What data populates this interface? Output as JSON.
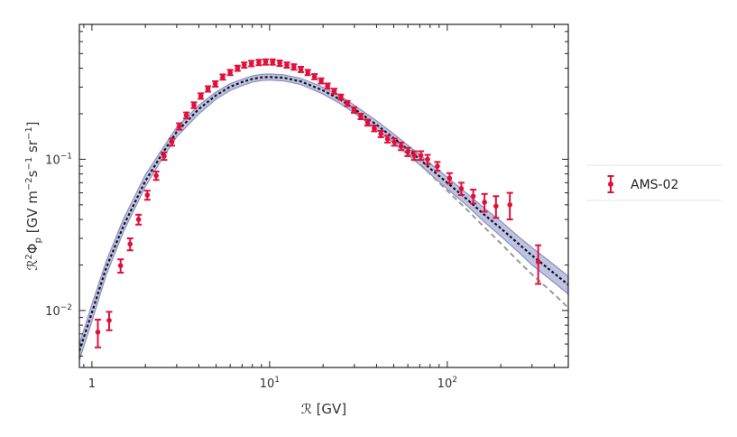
{
  "chart_data": {
    "type": "scatter",
    "title": "",
    "xlabel": "ℛ [GV]",
    "ylabel_parts": {
      "pre": "ℛ",
      "sup1": "2",
      "mid1": "Φ",
      "sub1": "p",
      "mid2": " [GV m",
      "sup2": "−2",
      "mid3": "s",
      "sup3": "−1",
      "mid4": " sr",
      "sup4": "−1",
      "post": "]"
    },
    "x_scale": "log",
    "y_scale": "log",
    "xlim": [
      0.85,
      480
    ],
    "ylim": [
      0.0042,
      0.78
    ],
    "x_ticks": [
      {
        "value": 1,
        "base": "1",
        "exp": ""
      },
      {
        "value": 10,
        "base": "10",
        "exp": "1"
      },
      {
        "value": 100,
        "base": "10",
        "exp": "2"
      }
    ],
    "y_ticks": [
      {
        "value": 0.01,
        "base": "10",
        "exp": "−2"
      },
      {
        "value": 0.1,
        "base": "10",
        "exp": "−1"
      }
    ],
    "grid": false,
    "legend_position": "outside-right",
    "colors": {
      "data": "#e0103a",
      "band": "#8a90c8",
      "model_black": "#111111",
      "model_gray": "#9a9a9a"
    },
    "series": [
      {
        "name": "AMS-02",
        "kind": "points_with_errors",
        "x": [
          1.08,
          1.25,
          1.45,
          1.64,
          1.83,
          2.05,
          2.3,
          2.55,
          2.82,
          3.1,
          3.4,
          3.75,
          4.1,
          4.5,
          4.95,
          5.45,
          6.0,
          6.6,
          7.2,
          7.9,
          8.7,
          9.5,
          10.4,
          11.4,
          12.5,
          13.7,
          15.0,
          16.4,
          17.9,
          19.5,
          21.2,
          23.1,
          25.2,
          27.4,
          29.9,
          32.6,
          35.6,
          38.8,
          42.3,
          46.1,
          50.3,
          54.9,
          59.8,
          65.2,
          71.1,
          77.5,
          88.0,
          103,
          120,
          140,
          162,
          188,
          225,
          325
        ],
        "y": [
          0.0072,
          0.0086,
          0.0198,
          0.0275,
          0.04,
          0.058,
          0.078,
          0.105,
          0.13,
          0.165,
          0.195,
          0.228,
          0.262,
          0.292,
          0.315,
          0.35,
          0.375,
          0.4,
          0.42,
          0.43,
          0.437,
          0.44,
          0.44,
          0.432,
          0.42,
          0.408,
          0.393,
          0.375,
          0.352,
          0.33,
          0.305,
          0.282,
          0.258,
          0.234,
          0.212,
          0.192,
          0.175,
          0.16,
          0.147,
          0.136,
          0.13,
          0.122,
          0.112,
          0.106,
          0.106,
          0.1,
          0.09,
          0.075,
          0.064,
          0.057,
          0.052,
          0.049,
          0.05,
          0.021
        ],
        "err": [
          0.0015,
          0.0012,
          0.002,
          0.0025,
          0.003,
          0.004,
          0.005,
          0.006,
          0.007,
          0.008,
          0.009,
          0.01,
          0.011,
          0.012,
          0.013,
          0.014,
          0.015,
          0.016,
          0.017,
          0.018,
          0.018,
          0.018,
          0.018,
          0.018,
          0.017,
          0.017,
          0.016,
          0.015,
          0.014,
          0.013,
          0.012,
          0.011,
          0.01,
          0.009,
          0.009,
          0.008,
          0.008,
          0.007,
          0.007,
          0.007,
          0.007,
          0.007,
          0.007,
          0.007,
          0.007,
          0.007,
          0.006,
          0.006,
          0.006,
          0.006,
          0.007,
          0.008,
          0.01,
          0.006
        ]
      },
      {
        "kind": "band",
        "x": [
          0.85,
          1.0,
          1.2,
          1.5,
          2.0,
          2.5,
          3.0,
          4.0,
          5.0,
          6.0,
          7.0,
          8.0,
          9.0,
          10,
          12,
          15,
          20,
          25,
          30,
          40,
          50,
          60,
          70,
          80,
          100,
          130,
          160,
          200,
          250,
          300,
          400,
          480
        ],
        "lo": [
          0.0047,
          0.0085,
          0.017,
          0.033,
          0.066,
          0.102,
          0.141,
          0.2,
          0.25,
          0.285,
          0.307,
          0.324,
          0.332,
          0.334,
          0.33,
          0.312,
          0.27,
          0.233,
          0.202,
          0.158,
          0.128,
          0.107,
          0.092,
          0.08,
          0.064,
          0.049,
          0.039,
          0.031,
          0.0245,
          0.02,
          0.0153,
          0.0128
        ],
        "hi": [
          0.006,
          0.011,
          0.021,
          0.04,
          0.079,
          0.118,
          0.163,
          0.228,
          0.279,
          0.316,
          0.338,
          0.356,
          0.364,
          0.366,
          0.362,
          0.343,
          0.3,
          0.262,
          0.228,
          0.18,
          0.147,
          0.124,
          0.107,
          0.094,
          0.076,
          0.059,
          0.048,
          0.039,
          0.031,
          0.026,
          0.02,
          0.0168
        ]
      },
      {
        "kind": "line_dotted_black",
        "x": [
          0.85,
          1.0,
          1.2,
          1.5,
          2.0,
          2.5,
          3.0,
          4.0,
          5.0,
          6.0,
          7.0,
          8.0,
          9.0,
          10,
          12,
          15,
          20,
          25,
          30,
          40,
          50,
          60,
          70,
          80,
          100,
          130,
          160,
          200,
          250,
          300,
          400,
          480
        ],
        "y": [
          0.0054,
          0.0097,
          0.019,
          0.036,
          0.072,
          0.11,
          0.152,
          0.215,
          0.265,
          0.302,
          0.324,
          0.34,
          0.348,
          0.35,
          0.346,
          0.327,
          0.285,
          0.248,
          0.215,
          0.169,
          0.138,
          0.116,
          0.1,
          0.087,
          0.07,
          0.054,
          0.0435,
          0.035,
          0.0278,
          0.0231,
          0.0176,
          0.0148
        ]
      },
      {
        "kind": "line_dashed_gray",
        "x": [
          50,
          60,
          70,
          80,
          100,
          130,
          160,
          200,
          250,
          300,
          400,
          480
        ],
        "y": [
          0.134,
          0.11,
          0.093,
          0.08,
          0.062,
          0.046,
          0.036,
          0.0278,
          0.0213,
          0.0173,
          0.0128,
          0.0104
        ]
      }
    ]
  }
}
